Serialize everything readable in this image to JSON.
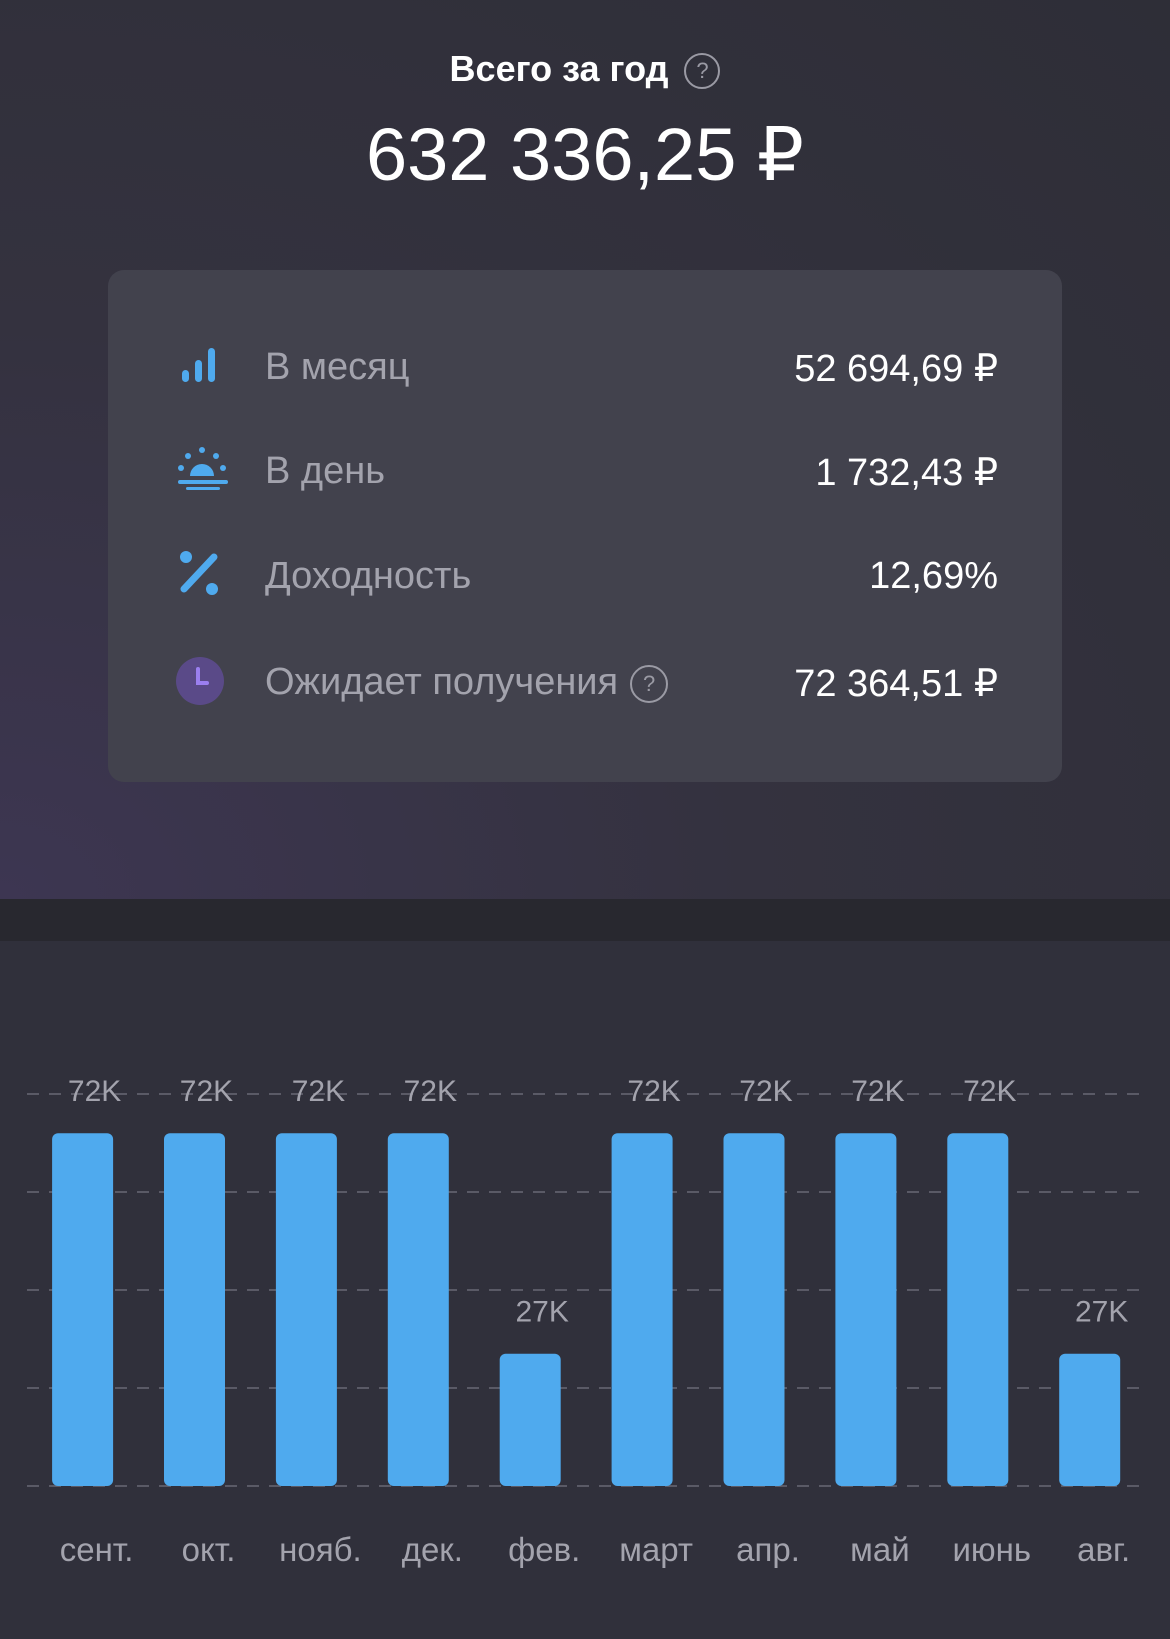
{
  "header": {
    "title": "Всего за год",
    "total": "632 336,25 ₽"
  },
  "stats": [
    {
      "label": "В месяц",
      "value": "52 694,69 ₽"
    },
    {
      "label": "В день",
      "value": "1 732,43 ₽"
    },
    {
      "label": "Доходность",
      "value": "12,69%"
    },
    {
      "label": "Ожидает получения",
      "value": "72 364,51 ₽"
    }
  ],
  "chart_data": {
    "type": "bar",
    "categories": [
      "сент.",
      "окт.",
      "нояб.",
      "дек.",
      "фев.",
      "март",
      "апр.",
      "май",
      "июнь",
      "авг."
    ],
    "values": [
      72000,
      72000,
      72000,
      72000,
      27000,
      72000,
      72000,
      72000,
      72000,
      27000
    ],
    "value_labels": [
      "72K",
      "72K",
      "72K",
      "72K",
      "27K",
      "72K",
      "72K",
      "72K",
      "72K",
      "27K"
    ],
    "color": "#4faaee",
    "ylim": [
      0,
      80000
    ],
    "yticks": [
      0,
      20000,
      40000,
      60000,
      80000
    ],
    "grid": true
  }
}
